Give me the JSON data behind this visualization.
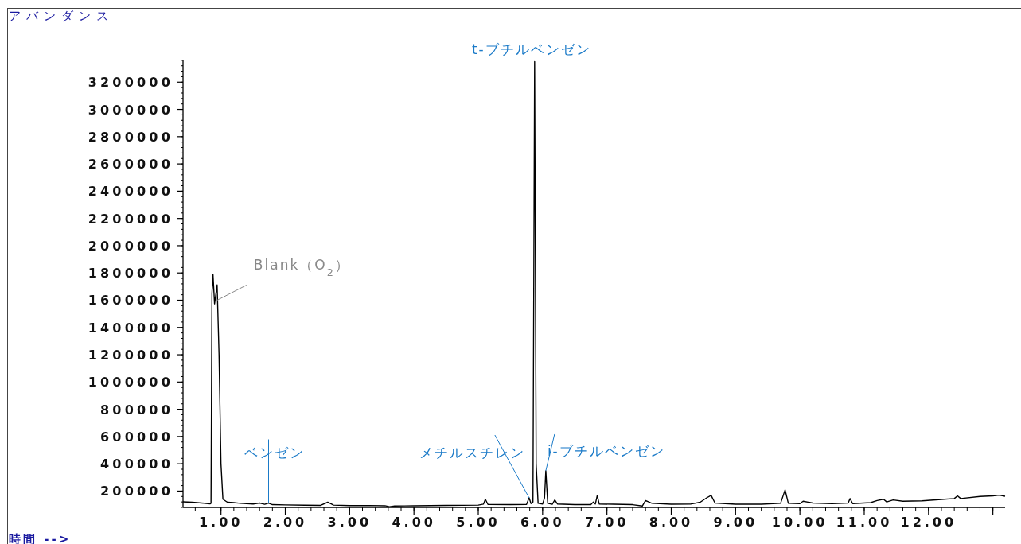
{
  "chart_data": {
    "type": "line",
    "color": "#000000",
    "xlabel": "時間 -->",
    "ylabel": "アバンダンス",
    "xlim": [
      0.41,
      13.19
    ],
    "ylim": [
      80000,
      3365000
    ],
    "xticks": [
      {
        "value": 1,
        "label": "1.00"
      },
      {
        "value": 2,
        "label": "2.00"
      },
      {
        "value": 3,
        "label": "3.00"
      },
      {
        "value": 4,
        "label": "4.00"
      },
      {
        "value": 5,
        "label": "5.00"
      },
      {
        "value": 6,
        "label": "6.00"
      },
      {
        "value": 7,
        "label": "7.00"
      },
      {
        "value": 8,
        "label": "8.00"
      },
      {
        "value": 9,
        "label": "9.00"
      },
      {
        "value": 10,
        "label": "10.00"
      },
      {
        "value": 11,
        "label": "11.00"
      },
      {
        "value": 12,
        "label": "12.00"
      },
      {
        "value": 13,
        "label": null
      }
    ],
    "yticks": [
      200000,
      400000,
      600000,
      800000,
      1000000,
      1200000,
      1400000,
      1600000,
      1800000,
      2000000,
      2200000,
      2400000,
      2600000,
      2800000,
      3000000,
      3200000
    ],
    "annotations": [
      {
        "text": "t-ブチルベンゼン",
        "x": 5.876,
        "y": 3350000
      },
      {
        "text": "Blank（O$_{2}$）",
        "x": 0.94,
        "y": 1600000
      },
      {
        "text": "ベンゼン",
        "x": 1.74,
        "y": 112000
      },
      {
        "text": "メチルスチレン",
        "x": 5.79,
        "y": 150000
      },
      {
        "text": "i-ブチルベンゼン",
        "x": 6.05,
        "y": 349000
      }
    ],
    "x": [
      0.41,
      0.55,
      0.7,
      0.83,
      0.845,
      0.86,
      0.876,
      0.9,
      0.94,
      0.97,
      1.0,
      1.03,
      1.1,
      1.2,
      1.3,
      1.5,
      1.6,
      1.68,
      1.74,
      1.8,
      2.0,
      2.3,
      2.55,
      2.66,
      2.75,
      3.0,
      3.3,
      3.55,
      3.62,
      3.7,
      4.0,
      4.5,
      5.0,
      5.08,
      5.11,
      5.15,
      5.5,
      5.75,
      5.79,
      5.82,
      5.85,
      5.876,
      5.9,
      5.93,
      6.0,
      6.03,
      6.05,
      6.08,
      6.15,
      6.19,
      6.23,
      6.5,
      6.75,
      6.79,
      6.82,
      6.85,
      6.88,
      7.1,
      7.4,
      7.55,
      7.6,
      7.7,
      8.0,
      8.3,
      8.45,
      8.55,
      8.62,
      8.68,
      9.0,
      9.4,
      9.7,
      9.77,
      9.82,
      10.0,
      10.05,
      10.2,
      10.5,
      10.75,
      10.78,
      10.82,
      11.1,
      11.2,
      11.3,
      11.35,
      11.45,
      11.6,
      11.9,
      12.2,
      12.4,
      12.45,
      12.5,
      12.8,
      13.0,
      13.1,
      13.19
    ],
    "values": [
      121000,
      118000,
      112000,
      106000,
      110000,
      1650000,
      1789000,
      1573000,
      1713000,
      1200000,
      400000,
      140000,
      118000,
      115000,
      110000,
      105000,
      112000,
      103000,
      112000,
      100000,
      98000,
      96000,
      95000,
      118000,
      97000,
      93000,
      94000,
      92000,
      85000,
      90000,
      92000,
      95000,
      97000,
      104000,
      140000,
      102000,
      100000,
      102000,
      150000,
      108000,
      120000,
      3350000,
      400000,
      110000,
      105000,
      150000,
      349000,
      110000,
      103000,
      135000,
      105000,
      100000,
      100000,
      120000,
      105000,
      168000,
      105000,
      103000,
      100000,
      90000,
      130000,
      110000,
      103000,
      104000,
      118000,
      150000,
      168000,
      112000,
      103000,
      103000,
      110000,
      209000,
      110000,
      108000,
      125000,
      112000,
      108000,
      112000,
      145000,
      108000,
      115000,
      130000,
      140000,
      120000,
      135000,
      125000,
      128000,
      138000,
      145000,
      165000,
      145000,
      160000,
      165000,
      170000,
      162000
    ]
  }
}
